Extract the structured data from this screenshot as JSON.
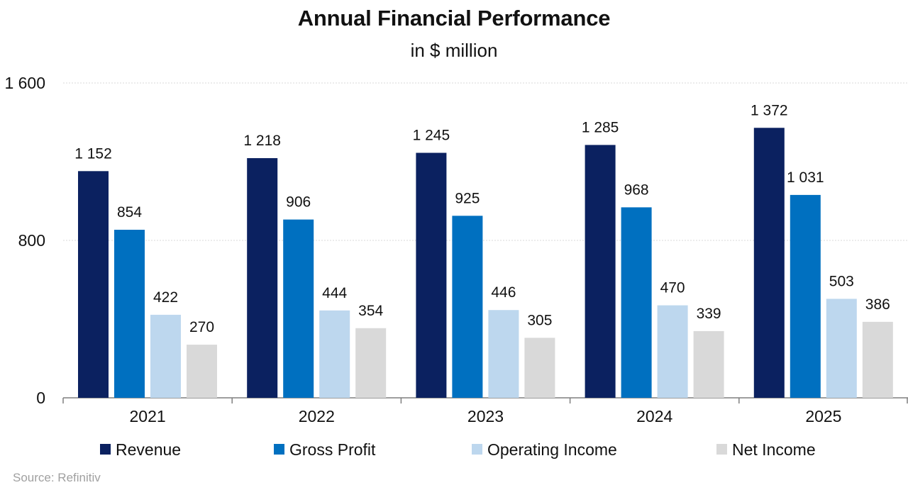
{
  "colors": {
    "revenue": "#0b2160",
    "gross_profit": "#0070c0",
    "operating_income": "#bdd7ee",
    "net_income": "#d9d9d9",
    "grid": "#d9d9d9",
    "axis": "#7f7f7f",
    "text": "#111111",
    "source": "#a0a0a0"
  },
  "chart_data": {
    "type": "bar",
    "title": "Annual Financial Performance",
    "subtitle": "in $ million",
    "categories": [
      "2021",
      "2022",
      "2023",
      "2024",
      "2025"
    ],
    "series": [
      {
        "name": "Revenue",
        "values": [
          1152,
          1218,
          1245,
          1285,
          1372
        ],
        "labels": [
          "1 152",
          "1 218",
          "1 245",
          "1 285",
          "1 372"
        ],
        "color": "#0b2160"
      },
      {
        "name": "Gross Profit",
        "values": [
          854,
          906,
          925,
          968,
          1031
        ],
        "labels": [
          "854",
          "906",
          "925",
          "968",
          "1 031"
        ],
        "color": "#0070c0"
      },
      {
        "name": "Operating Income",
        "values": [
          422,
          444,
          446,
          470,
          503
        ],
        "labels": [
          "422",
          "444",
          "446",
          "470",
          "503"
        ],
        "color": "#bdd7ee"
      },
      {
        "name": "Net Income",
        "values": [
          270,
          354,
          305,
          339,
          386
        ],
        "labels": [
          "270",
          "354",
          "305",
          "339",
          "386"
        ],
        "color": "#d9d9d9"
      }
    ],
    "ylim": [
      0,
      1600
    ],
    "yticks": [
      0,
      800,
      1600
    ],
    "ytick_labels": [
      "0",
      "800",
      "1 600"
    ],
    "grid": true,
    "legend_position": "bottom"
  },
  "source_text": "Source: Refinitiv"
}
